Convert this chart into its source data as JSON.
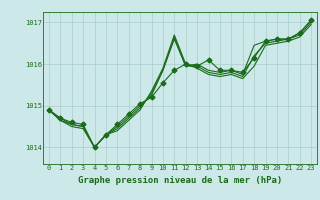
{
  "title": "Graphe pression niveau de la mer (hPa)",
  "background_color": "#cce8e8",
  "grid_color": "#aacccc",
  "line_color": "#1a6b1a",
  "marker_color": "#1a6b1a",
  "xlim": [
    -0.5,
    23.5
  ],
  "ylim": [
    1013.6,
    1017.25
  ],
  "yticks": [
    1014,
    1015,
    1016,
    1017
  ],
  "xticks": [
    0,
    1,
    2,
    3,
    4,
    5,
    6,
    7,
    8,
    9,
    10,
    11,
    12,
    13,
    14,
    15,
    16,
    17,
    18,
    19,
    20,
    21,
    22,
    23
  ],
  "series": [
    [
      1014.9,
      1014.7,
      1014.6,
      1014.55,
      1014.0,
      1014.3,
      1014.55,
      1014.8,
      1015.05,
      1015.2,
      1015.55,
      1015.85,
      1016.0,
      1015.95,
      1016.1,
      1015.85,
      1015.85,
      1015.8,
      1016.15,
      1016.55,
      1016.6,
      1016.6,
      1016.75,
      1017.05
    ],
    [
      1014.9,
      1014.7,
      1014.55,
      1014.5,
      1014.0,
      1014.3,
      1014.5,
      1014.75,
      1015.0,
      1015.25,
      1015.85,
      1016.6,
      1015.95,
      1016.0,
      1015.85,
      1015.8,
      1015.85,
      1015.75,
      1016.45,
      1016.55,
      1016.6,
      1016.6,
      1016.75,
      1017.05
    ],
    [
      1014.9,
      1014.65,
      1014.55,
      1014.5,
      1014.0,
      1014.3,
      1014.45,
      1014.7,
      1014.95,
      1015.3,
      1015.85,
      1016.65,
      1015.95,
      1015.95,
      1015.8,
      1015.75,
      1015.8,
      1015.7,
      1016.2,
      1016.5,
      1016.55,
      1016.6,
      1016.7,
      1017.0
    ],
    [
      1014.9,
      1014.65,
      1014.5,
      1014.45,
      1014.0,
      1014.3,
      1014.4,
      1014.65,
      1014.9,
      1015.35,
      1015.9,
      1016.7,
      1016.0,
      1015.9,
      1015.75,
      1015.7,
      1015.75,
      1015.65,
      1015.95,
      1016.45,
      1016.5,
      1016.55,
      1016.65,
      1016.95
    ]
  ],
  "has_markers": [
    true,
    false,
    false,
    false
  ],
  "marker_size": 2.5,
  "linewidth": 0.8,
  "tick_fontsize": 5.0,
  "label_fontsize": 6.5,
  "label_fontweight": "bold"
}
